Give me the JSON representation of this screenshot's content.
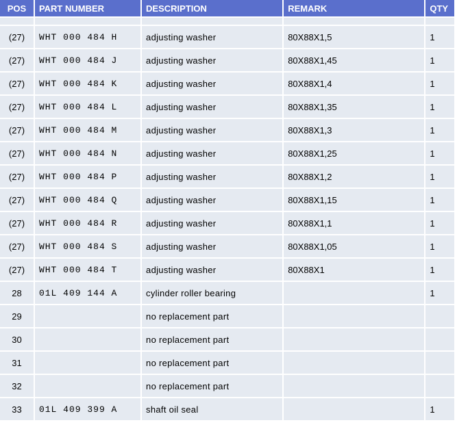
{
  "headers": {
    "pos": "POS",
    "part_number": "PART NUMBER",
    "description": "DESCRIPTION",
    "remark": "REMARK",
    "qty": "QTY"
  },
  "rows": [
    {
      "pos": "(27)",
      "part": "WHT 000 484 H",
      "desc": "adjusting washer",
      "remark": "80X88X1,5",
      "qty": "1"
    },
    {
      "pos": "(27)",
      "part": "WHT 000 484 J",
      "desc": "adjusting washer",
      "remark": "80X88X1,45",
      "qty": "1"
    },
    {
      "pos": "(27)",
      "part": "WHT 000 484 K",
      "desc": "adjusting washer",
      "remark": "80X88X1,4",
      "qty": "1"
    },
    {
      "pos": "(27)",
      "part": "WHT 000 484 L",
      "desc": "adjusting washer",
      "remark": "80X88X1,35",
      "qty": "1"
    },
    {
      "pos": "(27)",
      "part": "WHT 000 484 M",
      "desc": "adjusting washer",
      "remark": "80X88X1,3",
      "qty": "1"
    },
    {
      "pos": "(27)",
      "part": "WHT 000 484 N",
      "desc": "adjusting washer",
      "remark": "80X88X1,25",
      "qty": "1"
    },
    {
      "pos": "(27)",
      "part": "WHT 000 484 P",
      "desc": "adjusting washer",
      "remark": "80X88X1,2",
      "qty": "1"
    },
    {
      "pos": "(27)",
      "part": "WHT 000 484 Q",
      "desc": "adjusting washer",
      "remark": "80X88X1,15",
      "qty": "1"
    },
    {
      "pos": "(27)",
      "part": "WHT 000 484 R",
      "desc": "adjusting washer",
      "remark": "80X88X1,1",
      "qty": "1"
    },
    {
      "pos": "(27)",
      "part": "WHT 000 484 S",
      "desc": "adjusting washer",
      "remark": "80X88X1,05",
      "qty": "1"
    },
    {
      "pos": "(27)",
      "part": "WHT 000 484 T",
      "desc": "adjusting washer",
      "remark": "80X88X1",
      "qty": "1"
    },
    {
      "pos": "28",
      "part": "01L 409 144 A",
      "desc": "cylinder roller bearing",
      "remark": "",
      "qty": "1"
    },
    {
      "pos": "29",
      "part": "",
      "desc": "no replacement part",
      "remark": "",
      "qty": ""
    },
    {
      "pos": "30",
      "part": "",
      "desc": "no replacement part",
      "remark": "",
      "qty": ""
    },
    {
      "pos": "31",
      "part": "",
      "desc": "no replacement part",
      "remark": "",
      "qty": ""
    },
    {
      "pos": "32",
      "part": "",
      "desc": "no replacement part",
      "remark": "",
      "qty": ""
    },
    {
      "pos": "33",
      "part": "01L 409 399 A",
      "desc": "shaft oil seal",
      "remark": "",
      "qty": "1"
    }
  ],
  "colors": {
    "header_bg": "#5a6fcc",
    "header_text": "#ffffff",
    "row_bg": "#e5eaf1"
  }
}
